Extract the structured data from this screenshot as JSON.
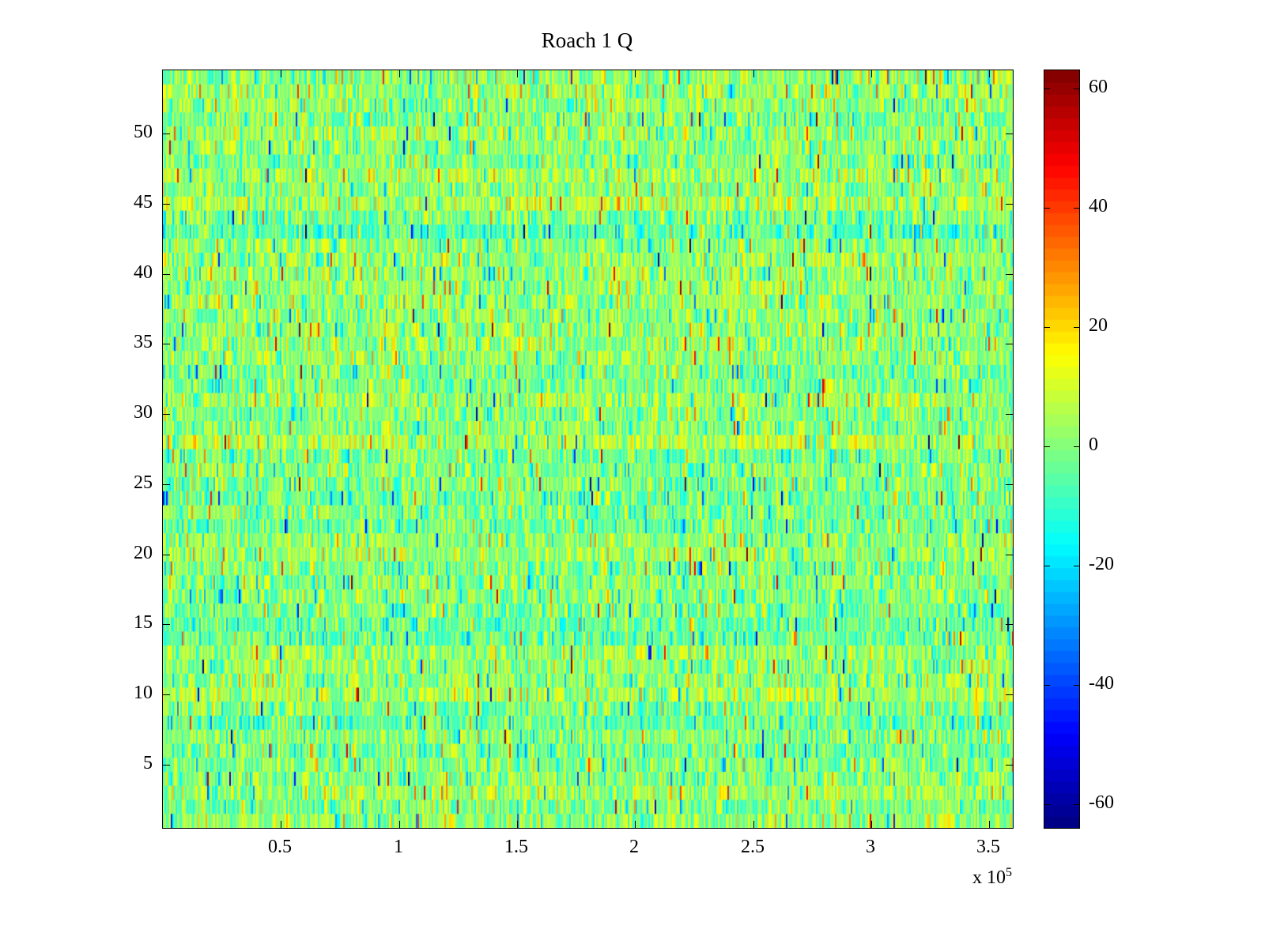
{
  "chart_data": {
    "type": "heatmap",
    "title": "Roach 1 Q",
    "colormap": "jet",
    "grid": false,
    "x_range": [
      0,
      360000
    ],
    "y_range": [
      0.5,
      54.5
    ],
    "rows": 54,
    "clim": [
      -64,
      63
    ],
    "x_ticks": [
      {
        "value": 50000,
        "label": "0.5"
      },
      {
        "value": 100000,
        "label": "1"
      },
      {
        "value": 150000,
        "label": "1.5"
      },
      {
        "value": 200000,
        "label": "2"
      },
      {
        "value": 250000,
        "label": "2.5"
      },
      {
        "value": 300000,
        "label": "3"
      },
      {
        "value": 350000,
        "label": "3.5"
      }
    ],
    "y_ticks": [
      {
        "value": 5,
        "label": "5"
      },
      {
        "value": 10,
        "label": "10"
      },
      {
        "value": 15,
        "label": "15"
      },
      {
        "value": 20,
        "label": "20"
      },
      {
        "value": 25,
        "label": "25"
      },
      {
        "value": 30,
        "label": "30"
      },
      {
        "value": 35,
        "label": "35"
      },
      {
        "value": 40,
        "label": "40"
      },
      {
        "value": 45,
        "label": "45"
      },
      {
        "value": 50,
        "label": "50"
      }
    ],
    "colorbar_ticks": [
      {
        "value": 60,
        "label": "60"
      },
      {
        "value": 40,
        "label": "40"
      },
      {
        "value": 20,
        "label": "20"
      },
      {
        "value": 0,
        "label": "0"
      },
      {
        "value": -20,
        "label": "-20"
      },
      {
        "value": -40,
        "label": "-40"
      },
      {
        "value": -60,
        "label": "-60"
      }
    ],
    "x_multiplier": {
      "text": "x 10",
      "exp": "5"
    },
    "noise": {
      "description": "random noise centered near 0, mostly green with sparse cyan/blue and orange/red outliers",
      "mean": 0,
      "std_primary": 9,
      "std_secondary": 18,
      "std_outlier": 34,
      "p_secondary": 0.09,
      "p_outlier": 0.015,
      "row_offset_std": 2.5,
      "seed": 1337
    },
    "colors": {
      "background": "#ffffff",
      "axis": "#000000"
    }
  }
}
